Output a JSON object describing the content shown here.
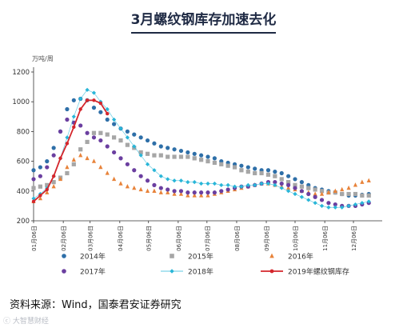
{
  "page": {
    "title": "3月螺纹钢库存加速去化",
    "source": "资料来源：Wind，国泰君安证券研究",
    "watermark": "ⓒ 大智慧财经"
  },
  "chart_data": {
    "type": "scatter",
    "unit_label": "万吨/周",
    "ylim": [
      200,
      1200
    ],
    "yticks": [
      200,
      400,
      600,
      800,
      1000,
      1200
    ],
    "x_range": [
      0,
      52
    ],
    "xticks": [
      {
        "label": "01月06日",
        "x": 0
      },
      {
        "label": "02月06日",
        "x": 4.43
      },
      {
        "label": "03月06日",
        "x": 8.43
      },
      {
        "label": "04月06日",
        "x": 12.86
      },
      {
        "label": "05月06日",
        "x": 17.14
      },
      {
        "label": "06月06日",
        "x": 21.57
      },
      {
        "label": "07月06日",
        "x": 25.86
      },
      {
        "label": "08月06日",
        "x": 30.29
      },
      {
        "label": "09月06日",
        "x": 34.71
      },
      {
        "label": "10月06日",
        "x": 39.0
      },
      {
        "label": "11月06日",
        "x": 43.43
      },
      {
        "label": "12月06日",
        "x": 47.71
      }
    ],
    "grid": false,
    "legend_position": "bottom",
    "series": [
      {
        "name": "2014年",
        "marker": "circle",
        "color": "#2e6fa8",
        "y": [
          540,
          560,
          600,
          690,
          800,
          950,
          1010,
          1020,
          1010,
          960,
          930,
          880,
          850,
          820,
          800,
          780,
          760,
          740,
          720,
          700,
          690,
          680,
          670,
          660,
          650,
          640,
          630,
          620,
          600,
          590,
          580,
          570,
          560,
          550,
          540,
          540,
          530,
          520,
          500,
          480,
          460,
          440,
          420,
          410,
          400,
          390,
          380,
          370,
          370,
          375,
          380
        ]
      },
      {
        "name": "2015年",
        "marker": "square",
        "color": "#a6a6a6",
        "y": [
          420,
          430,
          440,
          460,
          490,
          520,
          580,
          680,
          730,
          790,
          790,
          780,
          760,
          740,
          710,
          690,
          660,
          650,
          640,
          640,
          630,
          630,
          630,
          630,
          620,
          610,
          600,
          590,
          580,
          570,
          560,
          540,
          530,
          520,
          520,
          510,
          500,
          480,
          460,
          440,
          430,
          420,
          410,
          400,
          390,
          390,
          380,
          380,
          380,
          370,
          370
        ]
      },
      {
        "name": "2016年",
        "marker": "triangle",
        "color": "#e8833a",
        "y": [
          330,
          350,
          390,
          430,
          480,
          560,
          610,
          640,
          620,
          600,
          560,
          520,
          480,
          450,
          430,
          420,
          410,
          400,
          400,
          390,
          390,
          380,
          380,
          370,
          370,
          370,
          370,
          380,
          390,
          400,
          410,
          420,
          430,
          440,
          450,
          450,
          440,
          430,
          420,
          410,
          400,
          390,
          380,
          380,
          390,
          400,
          410,
          420,
          440,
          460,
          470
        ]
      },
      {
        "name": "2017年",
        "marker": "circle",
        "color": "#6b3fa0",
        "y": [
          480,
          500,
          560,
          640,
          800,
          880,
          860,
          840,
          790,
          760,
          740,
          700,
          660,
          620,
          580,
          540,
          500,
          470,
          440,
          420,
          410,
          400,
          400,
          390,
          390,
          390,
          390,
          390,
          400,
          410,
          420,
          430,
          430,
          440,
          450,
          460,
          460,
          450,
          440,
          420,
          400,
          380,
          360,
          340,
          320,
          310,
          300,
          300,
          300,
          310,
          320
        ]
      },
      {
        "name": "2018年",
        "marker": "diamond",
        "color": "#29b6d8",
        "y": [
          350,
          380,
          420,
          500,
          620,
          760,
          900,
          1020,
          1080,
          1060,
          1000,
          950,
          880,
          820,
          760,
          700,
          640,
          580,
          540,
          500,
          480,
          470,
          470,
          460,
          460,
          450,
          450,
          450,
          440,
          440,
          430,
          430,
          440,
          440,
          450,
          450,
          440,
          420,
          400,
          380,
          360,
          340,
          320,
          300,
          290,
          290,
          290,
          300,
          310,
          320,
          330
        ]
      },
      {
        "name": "2019年螺纹钢库存",
        "marker": "line-circle",
        "color": "#d4262c",
        "y": [
          330,
          370,
          410,
          500,
          620,
          720,
          830,
          950,
          1010,
          1010,
          990,
          920
        ]
      }
    ]
  }
}
